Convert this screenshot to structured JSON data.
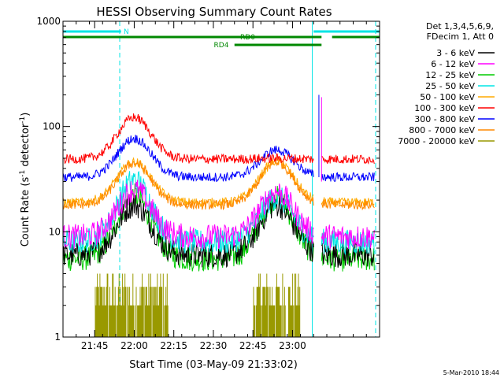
{
  "chart_data": {
    "type": "line",
    "title": "HESSI Observing Summary Count Rates",
    "xlabel": "Start Time (03-May-09 21:33:02)",
    "ylabel": "Count Rate (s⁻¹ detector⁻¹)",
    "xlim_minutes_after_21_33_02": [
      0,
      120
    ],
    "ylim": [
      1,
      1000
    ],
    "yscale": "log",
    "x_ticks": [
      {
        "label": "21:45",
        "t": 12
      },
      {
        "label": "22:00",
        "t": 27
      },
      {
        "label": "22:15",
        "t": 42
      },
      {
        "label": "22:30",
        "t": 57
      },
      {
        "label": "22:45",
        "t": 72
      },
      {
        "label": "23:00",
        "t": 87
      }
    ],
    "y_ticks": [
      {
        "label": "1",
        "v": 1
      },
      {
        "label": "10",
        "v": 10
      },
      {
        "label": "100",
        "v": 100
      },
      {
        "label": "1000",
        "v": 1000
      }
    ],
    "legend": {
      "placement": "top-right, outside plot",
      "header": [
        "Det 1,3,4,5,6,9,",
        "FDecim 1, Att 0"
      ]
    },
    "series": [
      {
        "name": "3 - 6 keV",
        "color": "#000000",
        "peak1": 18,
        "peak2": 18,
        "base": 6
      },
      {
        "name": "6 - 12 keV",
        "color": "#ff00ff",
        "peak1": 25,
        "peak2": 24,
        "base": 9
      },
      {
        "name": "12 - 25 keV",
        "color": "#00cc00",
        "peak1": 22,
        "peak2": 21,
        "base": 5.5
      },
      {
        "name": "25 - 50 keV",
        "color": "#00e5e5",
        "peak1": 31,
        "peak2": 21,
        "base": 8
      },
      {
        "name": "50 - 100 keV",
        "color": "#ffaa00",
        "peak1": 46,
        "peak2": 47,
        "base": 19
      },
      {
        "name": "100 - 300 keV",
        "color": "#ff0000",
        "peak1": 122,
        "peak2": 50,
        "base": 49
      },
      {
        "name": "300 - 800 keV",
        "color": "#0000ff",
        "peak1": 77,
        "peak2": 60,
        "base": 33
      },
      {
        "name": "800 - 7000 keV",
        "color": "#ff8800",
        "peak1": 45,
        "peak2": 46,
        "base": 18
      },
      {
        "name": "7000 - 20000 keV",
        "color": "#999900",
        "peak1": 4,
        "peak2": 4,
        "base": 1
      }
    ],
    "flag_bars": [
      {
        "label": "N",
        "color": "#00e5e5",
        "segments_minutes": [
          [
            0,
            22
          ],
          [
            95,
            120
          ]
        ]
      },
      {
        "label": "RD0",
        "color": "#008800",
        "segments_minutes": [
          [
            0,
            98
          ],
          [
            102,
            120
          ]
        ]
      },
      {
        "label": "RD4",
        "color": "#008800",
        "segments_minutes": [
          [
            65,
            98
          ]
        ]
      }
    ],
    "vertical_markers_minutes": [
      {
        "t": 21.5,
        "color": "#00e5e5",
        "style": "dashed"
      },
      {
        "t": 94.5,
        "color": "#00e5e5",
        "style": "solid"
      },
      {
        "t": 118.5,
        "color": "#00e5e5",
        "style": "dashed"
      }
    ],
    "grid": false
  },
  "footer": {
    "date_stamp": "5-Mar-2010 18:44"
  }
}
